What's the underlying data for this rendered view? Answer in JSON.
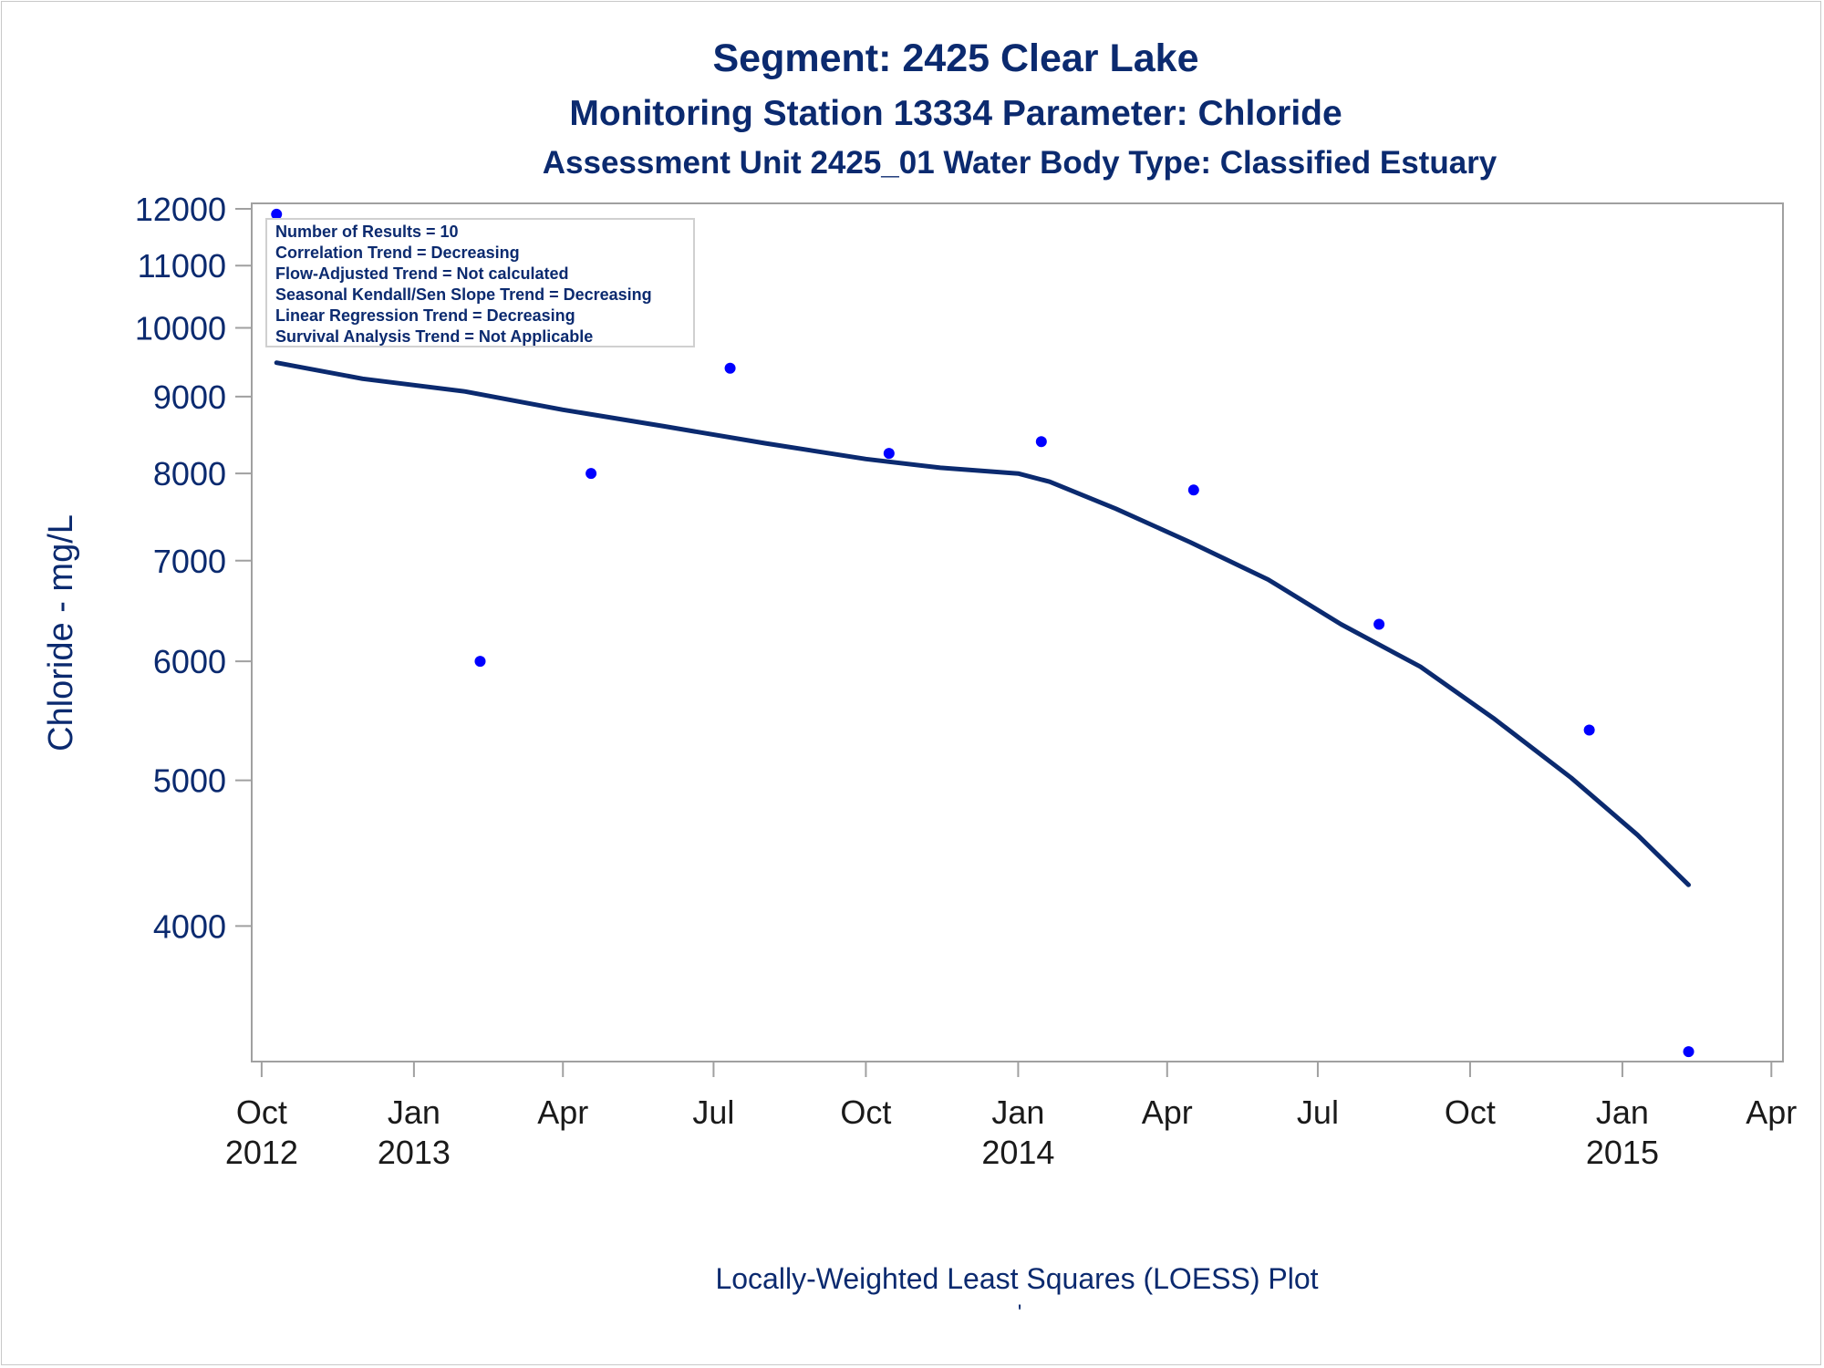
{
  "chart_data": {
    "type": "scatter",
    "title": "Segment: 2425  Clear Lake",
    "subtitle": "Monitoring Station 13334 Parameter: Chloride",
    "subtitle2": "Assessment Unit 2425_01   Water Body Type: Classified Estuary",
    "ylabel": "Chloride - mg/L",
    "footnote": "Locally-Weighted Least Squares (LOESS) Plot",
    "footnote_mark": "'",
    "y_scale": "log",
    "ylim": [
      3250,
      12100
    ],
    "yticks": [
      4000,
      5000,
      6000,
      7000,
      8000,
      9000,
      10000,
      11000,
      12000
    ],
    "ytick_labels": [
      "4000",
      "5000",
      "6000",
      "7000",
      "8000",
      "9000",
      "10000",
      "11000",
      "12000"
    ],
    "xlim": [
      "2012-09-25",
      "2015-04-08"
    ],
    "xticks": [
      "2012-10-01",
      "2013-01-01",
      "2013-04-01",
      "2013-07-01",
      "2013-10-01",
      "2014-01-01",
      "2014-04-01",
      "2014-07-01",
      "2014-10-01",
      "2015-01-01",
      "2015-04-01"
    ],
    "xtick_labels": [
      [
        "Oct",
        "2012"
      ],
      [
        "Jan",
        "2013"
      ],
      [
        "Apr",
        ""
      ],
      [
        "Jul",
        ""
      ],
      [
        "Oct",
        ""
      ],
      [
        "Jan",
        "2014"
      ],
      [
        "Apr",
        ""
      ],
      [
        "Jul",
        ""
      ],
      [
        "Oct",
        ""
      ],
      [
        "Jan",
        "2015"
      ],
      [
        "Apr",
        ""
      ]
    ],
    "grid": false,
    "series": [
      {
        "kind": "points",
        "color": "#0000ff",
        "x": [
          "2012-10-10",
          "2013-02-10",
          "2013-04-18",
          "2013-07-11",
          "2013-10-15",
          "2014-01-15",
          "2014-04-17",
          "2014-08-07",
          "2014-12-12",
          "2015-02-10"
        ],
        "y": [
          11900,
          6000,
          8000,
          9400,
          8250,
          8400,
          7800,
          6350,
          5400,
          3300
        ]
      },
      {
        "kind": "loess",
        "color": "#0b2a6f",
        "x": [
          "2012-10-10",
          "2012-12-01",
          "2013-02-01",
          "2013-04-01",
          "2013-06-01",
          "2013-08-01",
          "2013-10-01",
          "2013-11-15",
          "2014-01-01",
          "2014-01-20",
          "2014-03-01",
          "2014-04-15",
          "2014-06-01",
          "2014-07-15",
          "2014-09-01",
          "2014-10-15",
          "2014-12-01",
          "2015-01-10",
          "2015-02-10"
        ],
        "y": [
          9480,
          9250,
          9070,
          8820,
          8600,
          8380,
          8180,
          8070,
          8000,
          7900,
          7580,
          7200,
          6800,
          6350,
          5950,
          5500,
          5020,
          4600,
          4260
        ]
      }
    ],
    "stats": [
      "Number of Results = 10",
      "Correlation Trend = Decreasing",
      "Flow-Adjusted Trend = Not calculated",
      "Seasonal Kendall/Sen Slope Trend = Decreasing",
      "Linear Regression Trend = Decreasing",
      "Survival Analysis Trend = Not Applicable"
    ],
    "colors": {
      "text": "#0b2a6f",
      "axis": "#a0a0a0",
      "points": "#0000ff",
      "curve": "#0b2a6f"
    }
  }
}
